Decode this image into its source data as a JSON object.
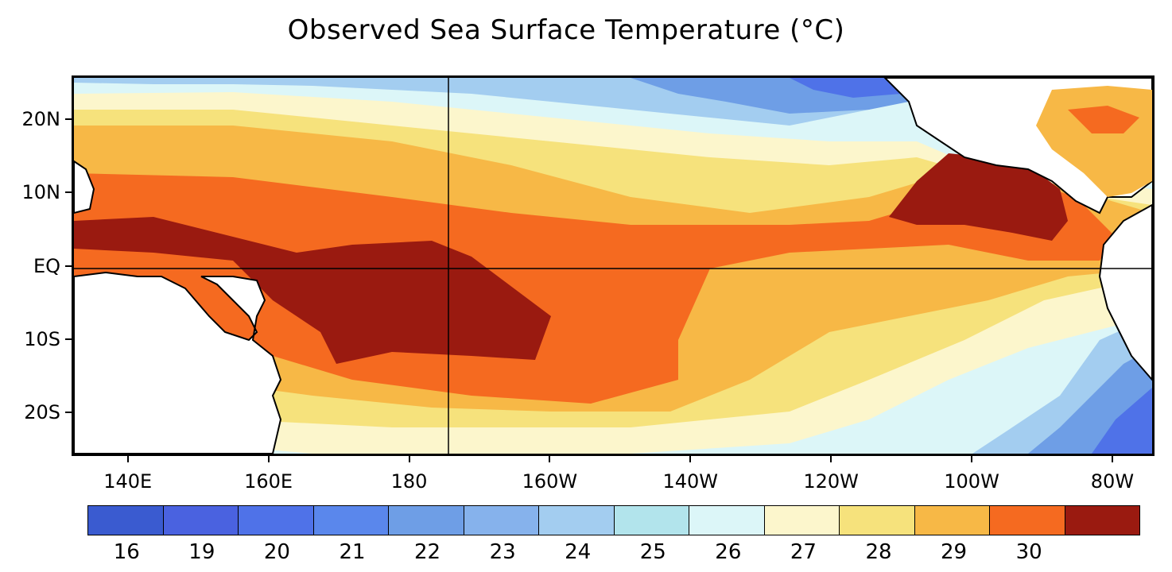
{
  "title": "Observed Sea Surface Temperature (°C)",
  "map": {
    "projection": "equirectangular",
    "region": "Tropical Pacific Ocean",
    "lon_range_deg_east": [
      132,
      286
    ],
    "lat_range_deg": [
      -26,
      26
    ],
    "reference_lines": [
      "Equator",
      "180°"
    ],
    "y_ticks": [
      {
        "lat": 20,
        "label": "20N"
      },
      {
        "lat": 10,
        "label": "10N"
      },
      {
        "lat": 0,
        "label": "EQ"
      },
      {
        "lat": -10,
        "label": "10S"
      },
      {
        "lat": -20,
        "label": "20S"
      }
    ],
    "x_ticks": [
      {
        "lon": 140,
        "label": "140E"
      },
      {
        "lon": 160,
        "label": "160E"
      },
      {
        "lon": 180,
        "label": "180"
      },
      {
        "lon": 200,
        "label": "160W"
      },
      {
        "lon": 220,
        "label": "140W"
      },
      {
        "lon": 240,
        "label": "120W"
      },
      {
        "lon": 260,
        "label": "100W"
      },
      {
        "lon": 280,
        "label": "80W"
      }
    ],
    "land_color": "#ffffff",
    "coastline_color": "#000000"
  },
  "colorbar": {
    "colors": [
      "#3a5bd0",
      "#4a62e0",
      "#4f72e8",
      "#5a87ec",
      "#6e9ee6",
      "#86b2ec",
      "#a3cdf0",
      "#b2e4ec",
      "#dcf6f8",
      "#fcf6cc",
      "#f6e27c",
      "#f7b846",
      "#f56a20",
      "#9a1a10"
    ],
    "labels": [
      "16",
      "19",
      "20",
      "21",
      "22",
      "23",
      "24",
      "25",
      "26",
      "27",
      "28",
      "29",
      "30"
    ]
  }
}
